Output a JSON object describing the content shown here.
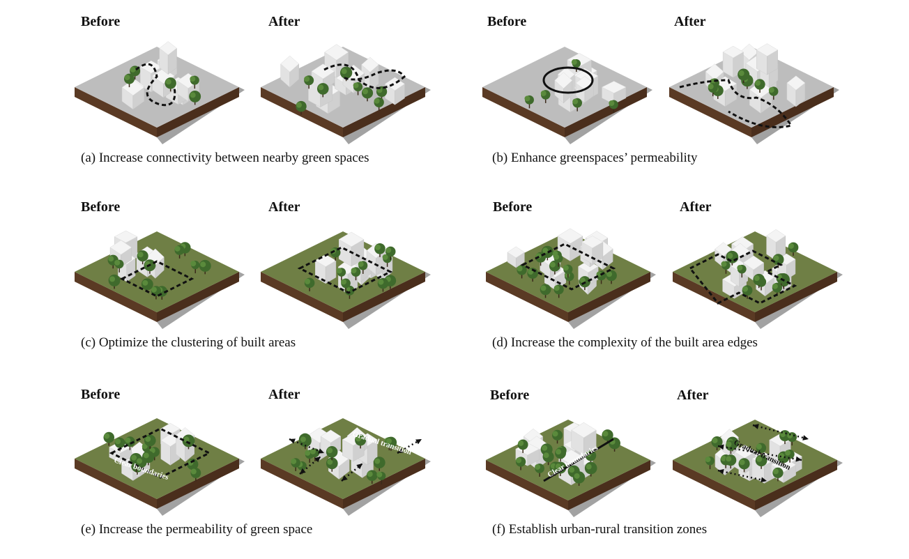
{
  "panels": [
    {
      "id": "a",
      "before": "Before",
      "after": "After",
      "caption": "(a) Increase connectivity between nearby green spaces",
      "ground": "gray"
    },
    {
      "id": "b",
      "before": "Before",
      "after": "After",
      "caption": "(b) Enhance greenspaces’ permeability",
      "ground": "gray"
    },
    {
      "id": "c",
      "before": "Before",
      "after": "After",
      "caption": "(c) Optimize the clustering of built areas",
      "ground": "green"
    },
    {
      "id": "d",
      "before": "Before",
      "after": "After",
      "caption": "(d) Increase the complexity of the built area edges",
      "ground": "green"
    },
    {
      "id": "e",
      "before": "Before",
      "after": "After",
      "caption": "(e) Increase the permeability of green space",
      "ground": "green"
    },
    {
      "id": "f",
      "before": "Before",
      "after": "After",
      "caption": "(f) Establish urban-rural transition zones",
      "ground": "green"
    }
  ],
  "annotations": {
    "e_before": "Clear boundaries",
    "e_after": "Gradual transition",
    "f_before": "Clear boundaries",
    "f_after": "Gradual transition"
  },
  "colors": {
    "gray_ground": "#bdbdbd",
    "green_ground": "#6f7f45",
    "soil": "#5a3a24",
    "building": "#f4f4f4",
    "tree": "#3f6a2c"
  }
}
